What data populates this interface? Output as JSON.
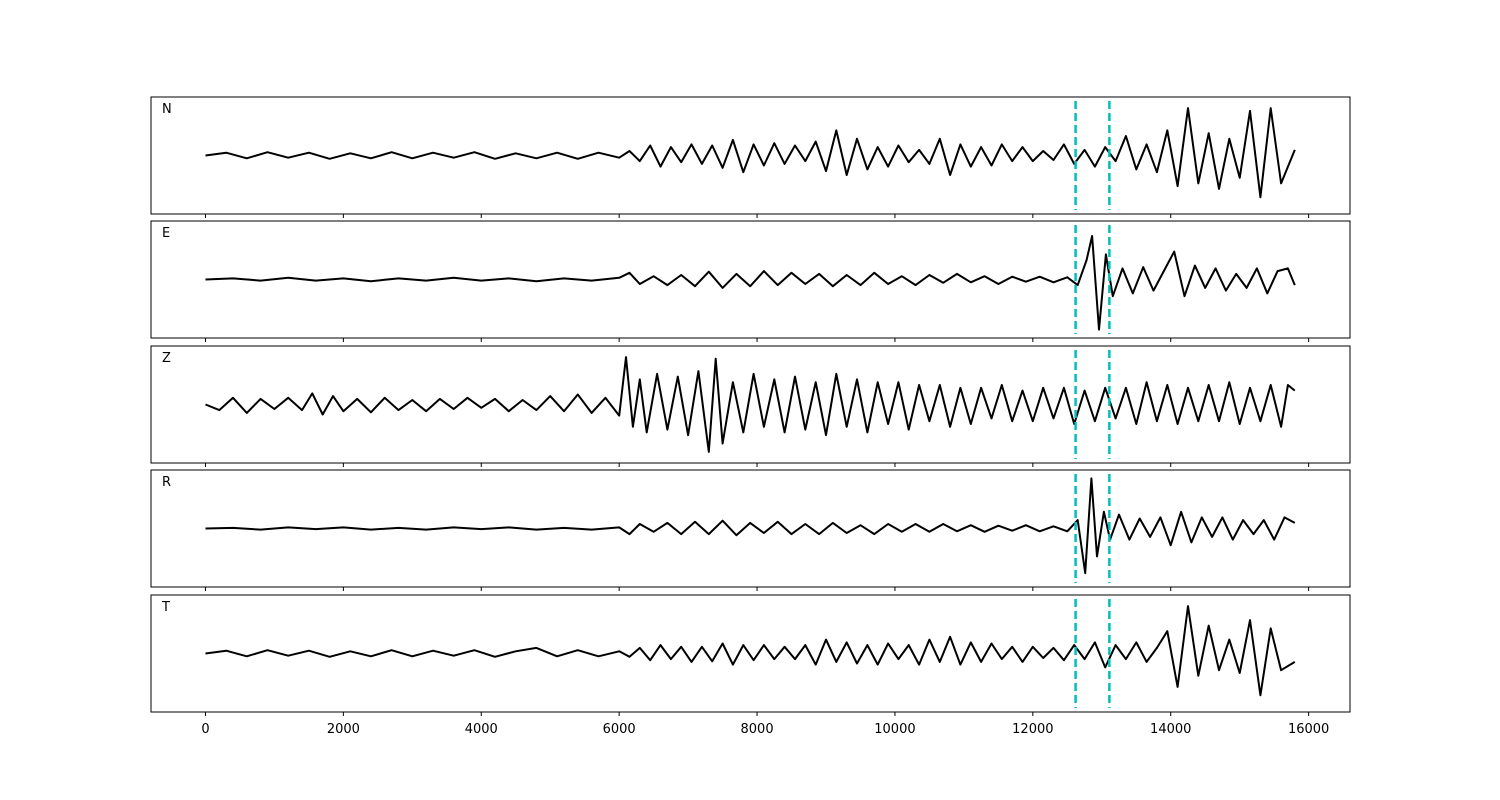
{
  "chart_data": {
    "type": "line",
    "x_range": [
      -790,
      16600
    ],
    "x_ticks": [
      0,
      2000,
      4000,
      6000,
      8000,
      10000,
      12000,
      14000,
      16000
    ],
    "x_tick_labels": [
      "0",
      "2000",
      "4000",
      "6000",
      "8000",
      "10000",
      "12000",
      "14000",
      "16000"
    ],
    "markers": {
      "color": "#00bfbf",
      "style": "dashed",
      "x": [
        12620,
        13110
      ]
    },
    "trace_color": "#000000",
    "series": [
      {
        "name": "N",
        "ylim": [
          -1.05,
          1.05
        ],
        "x": [
          0,
          300,
          600,
          900,
          1200,
          1500,
          1800,
          2100,
          2400,
          2700,
          3000,
          3300,
          3600,
          3900,
          4200,
          4500,
          4800,
          5100,
          5400,
          5700,
          6000,
          6150,
          6300,
          6450,
          6600,
          6750,
          6900,
          7050,
          7200,
          7350,
          7500,
          7650,
          7800,
          7950,
          8100,
          8250,
          8400,
          8550,
          8700,
          8850,
          9000,
          9150,
          9300,
          9450,
          9600,
          9750,
          9900,
          10050,
          10200,
          10350,
          10500,
          10650,
          10800,
          10950,
          11100,
          11250,
          11400,
          11550,
          11700,
          11850,
          12000,
          12150,
          12300,
          12450,
          12600,
          12750,
          12900,
          13050,
          13200,
          13350,
          13500,
          13650,
          13800,
          13950,
          14100,
          14250,
          14400,
          14550,
          14700,
          14850,
          15000,
          15150,
          15300,
          15450,
          15600,
          15800
        ],
        "y": [
          0.0,
          0.05,
          -0.05,
          0.06,
          -0.04,
          0.05,
          -0.06,
          0.04,
          -0.05,
          0.06,
          -0.05,
          0.05,
          -0.04,
          0.06,
          -0.06,
          0.04,
          -0.05,
          0.05,
          -0.06,
          0.05,
          -0.04,
          0.08,
          -0.1,
          0.18,
          -0.2,
          0.15,
          -0.12,
          0.2,
          -0.15,
          0.18,
          -0.22,
          0.28,
          -0.3,
          0.2,
          -0.18,
          0.22,
          -0.15,
          0.18,
          -0.1,
          0.25,
          -0.28,
          0.45,
          -0.35,
          0.3,
          -0.25,
          0.15,
          -0.2,
          0.18,
          -0.12,
          0.1,
          -0.15,
          0.3,
          -0.35,
          0.2,
          -0.2,
          0.15,
          -0.18,
          0.2,
          -0.1,
          0.15,
          -0.1,
          0.08,
          -0.08,
          0.2,
          -0.15,
          0.1,
          -0.2,
          0.15,
          -0.1,
          0.35,
          -0.25,
          0.2,
          -0.3,
          0.45,
          -0.55,
          0.85,
          -0.5,
          0.4,
          -0.6,
          0.3,
          -0.4,
          0.8,
          -0.75,
          0.85,
          -0.5,
          0.1
        ]
      },
      {
        "name": "E",
        "ylim": [
          -1.05,
          1.05
        ],
        "x": [
          0,
          400,
          800,
          1200,
          1600,
          2000,
          2400,
          2800,
          3200,
          3600,
          4000,
          4400,
          4800,
          5200,
          5600,
          6000,
          6150,
          6300,
          6500,
          6700,
          6900,
          7100,
          7300,
          7500,
          7700,
          7900,
          8100,
          8300,
          8500,
          8700,
          8900,
          9100,
          9300,
          9500,
          9700,
          9900,
          10100,
          10300,
          10500,
          10700,
          10900,
          11100,
          11300,
          11500,
          11700,
          11900,
          12100,
          12300,
          12500,
          12650,
          12780,
          12860,
          12960,
          13060,
          13160,
          13300,
          13450,
          13600,
          13750,
          13900,
          14050,
          14200,
          14350,
          14500,
          14650,
          14800,
          14950,
          15100,
          15250,
          15400,
          15550,
          15700,
          15800
        ],
        "y": [
          0.0,
          0.02,
          -0.02,
          0.03,
          -0.02,
          0.02,
          -0.03,
          0.02,
          -0.02,
          0.03,
          -0.02,
          0.02,
          -0.03,
          0.02,
          -0.02,
          0.03,
          0.12,
          -0.08,
          0.06,
          -0.1,
          0.08,
          -0.12,
          0.14,
          -0.15,
          0.1,
          -0.12,
          0.15,
          -0.1,
          0.12,
          -0.08,
          0.1,
          -0.12,
          0.08,
          -0.1,
          0.12,
          -0.08,
          0.06,
          -0.1,
          0.08,
          -0.06,
          0.1,
          -0.05,
          0.06,
          -0.08,
          0.05,
          -0.04,
          0.05,
          -0.05,
          0.04,
          -0.1,
          0.35,
          0.78,
          -0.9,
          0.45,
          -0.3,
          0.2,
          -0.25,
          0.22,
          -0.2,
          0.15,
          0.5,
          -0.3,
          0.25,
          -0.15,
          0.2,
          -0.2,
          0.1,
          -0.15,
          0.2,
          -0.25,
          0.15,
          0.2,
          -0.1
        ]
      },
      {
        "name": "Z",
        "ylim": [
          -1.05,
          1.05
        ],
        "x": [
          0,
          200,
          400,
          600,
          800,
          1000,
          1200,
          1400,
          1550,
          1700,
          1850,
          2000,
          2200,
          2400,
          2600,
          2800,
          3000,
          3200,
          3400,
          3600,
          3800,
          4000,
          4200,
          4400,
          4600,
          4800,
          5000,
          5200,
          5400,
          5600,
          5800,
          6000,
          6100,
          6200,
          6300,
          6400,
          6550,
          6700,
          6850,
          7000,
          7150,
          7300,
          7400,
          7500,
          7650,
          7800,
          7950,
          8100,
          8250,
          8400,
          8550,
          8700,
          8850,
          9000,
          9150,
          9300,
          9450,
          9600,
          9750,
          9900,
          10050,
          10200,
          10350,
          10500,
          10650,
          10800,
          10950,
          11100,
          11250,
          11400,
          11550,
          11700,
          11850,
          12000,
          12150,
          12300,
          12450,
          12600,
          12750,
          12900,
          13050,
          13200,
          13350,
          13500,
          13650,
          13800,
          13950,
          14100,
          14250,
          14400,
          14550,
          14700,
          14850,
          15000,
          15150,
          15300,
          15450,
          15600,
          15700,
          15800
        ],
        "y": [
          0.0,
          -0.1,
          0.12,
          -0.15,
          0.1,
          -0.08,
          0.12,
          -0.1,
          0.2,
          -0.18,
          0.15,
          -0.12,
          0.1,
          -0.14,
          0.12,
          -0.1,
          0.08,
          -0.12,
          0.1,
          -0.08,
          0.12,
          -0.06,
          0.1,
          -0.12,
          0.08,
          -0.1,
          0.15,
          -0.12,
          0.18,
          -0.15,
          0.12,
          -0.2,
          0.85,
          -0.4,
          0.45,
          -0.5,
          0.55,
          -0.45,
          0.5,
          -0.55,
          0.6,
          -0.85,
          0.82,
          -0.7,
          0.4,
          -0.5,
          0.55,
          -0.4,
          0.45,
          -0.5,
          0.5,
          -0.45,
          0.4,
          -0.55,
          0.55,
          -0.4,
          0.45,
          -0.5,
          0.4,
          -0.35,
          0.4,
          -0.45,
          0.35,
          -0.3,
          0.35,
          -0.4,
          0.3,
          -0.35,
          0.3,
          -0.25,
          0.35,
          -0.3,
          0.25,
          -0.3,
          0.3,
          -0.25,
          0.3,
          -0.35,
          0.25,
          -0.3,
          0.3,
          -0.25,
          0.3,
          -0.35,
          0.4,
          -0.3,
          0.35,
          -0.35,
          0.3,
          -0.3,
          0.35,
          -0.3,
          0.4,
          -0.35,
          0.3,
          -0.3,
          0.35,
          -0.4,
          0.35,
          0.25
        ]
      },
      {
        "name": "R",
        "ylim": [
          -1.05,
          1.05
        ],
        "x": [
          0,
          400,
          800,
          1200,
          1600,
          2000,
          2400,
          2800,
          3200,
          3600,
          4000,
          4400,
          4800,
          5200,
          5600,
          6000,
          6150,
          6300,
          6500,
          6700,
          6900,
          7100,
          7300,
          7500,
          7700,
          7900,
          8100,
          8300,
          8500,
          8700,
          8900,
          9100,
          9300,
          9500,
          9700,
          9900,
          10100,
          10300,
          10500,
          10700,
          10900,
          11100,
          11300,
          11500,
          11700,
          11900,
          12100,
          12300,
          12500,
          12650,
          12760,
          12850,
          12930,
          13030,
          13120,
          13250,
          13400,
          13550,
          13700,
          13850,
          14000,
          14150,
          14300,
          14450,
          14600,
          14750,
          14900,
          15050,
          15200,
          15350,
          15500,
          15650,
          15800
        ],
        "y": [
          0.0,
          0.01,
          -0.02,
          0.02,
          -0.01,
          0.02,
          -0.02,
          0.01,
          -0.02,
          0.02,
          -0.01,
          0.02,
          -0.02,
          0.01,
          -0.02,
          0.02,
          -0.1,
          0.08,
          -0.06,
          0.1,
          -0.1,
          0.12,
          -0.1,
          0.14,
          -0.12,
          0.1,
          -0.08,
          0.12,
          -0.1,
          0.08,
          -0.1,
          0.1,
          -0.08,
          0.06,
          -0.1,
          0.08,
          -0.06,
          0.08,
          -0.06,
          0.08,
          -0.05,
          0.06,
          -0.06,
          0.05,
          -0.04,
          0.06,
          -0.05,
          0.04,
          -0.05,
          0.15,
          -0.8,
          0.9,
          -0.5,
          0.3,
          -0.2,
          0.25,
          -0.2,
          0.18,
          -0.15,
          0.2,
          -0.3,
          0.3,
          -0.25,
          0.2,
          -0.15,
          0.2,
          -0.2,
          0.15,
          -0.1,
          0.15,
          -0.2,
          0.2,
          0.1
        ]
      },
      {
        "name": "T",
        "ylim": [
          -1.05,
          1.05
        ],
        "x": [
          0,
          300,
          600,
          900,
          1200,
          1500,
          1800,
          2100,
          2400,
          2700,
          3000,
          3300,
          3600,
          3900,
          4200,
          4500,
          4800,
          5100,
          5400,
          5700,
          6000,
          6150,
          6300,
          6450,
          6600,
          6750,
          6900,
          7050,
          7200,
          7350,
          7500,
          7650,
          7800,
          7950,
          8100,
          8250,
          8400,
          8550,
          8700,
          8850,
          9000,
          9150,
          9300,
          9450,
          9600,
          9750,
          9900,
          10050,
          10200,
          10350,
          10500,
          10650,
          10800,
          10950,
          11100,
          11250,
          11400,
          11550,
          11700,
          11850,
          12000,
          12150,
          12300,
          12450,
          12600,
          12750,
          12900,
          13050,
          13200,
          13350,
          13500,
          13650,
          13800,
          13950,
          14100,
          14250,
          14400,
          14550,
          14700,
          14850,
          15000,
          15150,
          15300,
          15450,
          15600,
          15800
        ],
        "y": [
          0.0,
          0.05,
          -0.05,
          0.06,
          -0.04,
          0.05,
          -0.06,
          0.04,
          -0.05,
          0.06,
          -0.05,
          0.05,
          -0.04,
          0.06,
          -0.06,
          0.04,
          0.1,
          -0.05,
          0.06,
          -0.05,
          0.04,
          -0.06,
          0.1,
          -0.12,
          0.15,
          -0.1,
          0.12,
          -0.15,
          0.12,
          -0.14,
          0.18,
          -0.2,
          0.15,
          -0.12,
          0.15,
          -0.1,
          0.12,
          -0.1,
          0.15,
          -0.2,
          0.25,
          -0.15,
          0.2,
          -0.18,
          0.15,
          -0.2,
          0.18,
          -0.1,
          0.15,
          -0.2,
          0.25,
          -0.15,
          0.3,
          -0.2,
          0.2,
          -0.15,
          0.18,
          -0.1,
          0.12,
          -0.15,
          0.12,
          -0.08,
          0.1,
          -0.12,
          0.15,
          -0.1,
          0.2,
          -0.25,
          0.15,
          -0.1,
          0.2,
          -0.15,
          0.1,
          0.4,
          -0.6,
          0.85,
          -0.4,
          0.5,
          -0.3,
          0.25,
          -0.35,
          0.6,
          -0.75,
          0.45,
          -0.3,
          -0.15
        ]
      }
    ]
  }
}
